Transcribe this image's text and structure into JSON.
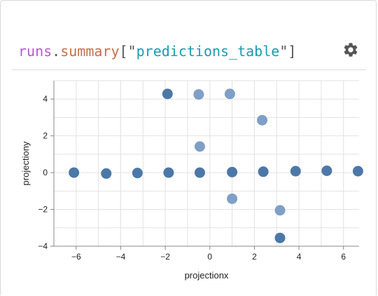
{
  "header": {
    "title_runs": "runs",
    "title_dot": ".",
    "title_summary": "summary",
    "title_open": "[\"",
    "title_key": "predictions_table",
    "title_close": "\"]",
    "settings_icon": "gear-icon"
  },
  "chart_data": {
    "type": "scatter",
    "xlabel": "projectionx",
    "ylabel": "projectiony",
    "xlim": [
      -7,
      6.7
    ],
    "ylim": [
      -4,
      5
    ],
    "x_ticks": [
      -6,
      -4,
      -2,
      0,
      2,
      4,
      6
    ],
    "y_ticks": [
      -4,
      -2,
      0,
      2,
      4
    ],
    "tick_labels_x": [
      "−6",
      "−4",
      "−2",
      "0",
      "2",
      "4",
      "6"
    ],
    "tick_labels_y": [
      "−4",
      "−2",
      "0",
      "2",
      "4"
    ],
    "grid": true,
    "points": [
      {
        "x": -6.1,
        "y": 0.0,
        "shade": "dark"
      },
      {
        "x": -4.65,
        "y": -0.05,
        "shade": "dark"
      },
      {
        "x": -3.25,
        "y": -0.02,
        "shade": "dark"
      },
      {
        "x": -1.85,
        "y": 0.0,
        "shade": "dark"
      },
      {
        "x": -0.45,
        "y": 0.0,
        "shade": "dark"
      },
      {
        "x": 1.0,
        "y": 0.03,
        "shade": "dark"
      },
      {
        "x": 2.4,
        "y": 0.05,
        "shade": "dark"
      },
      {
        "x": 3.85,
        "y": 0.08,
        "shade": "dark"
      },
      {
        "x": 5.25,
        "y": 0.1,
        "shade": "dark"
      },
      {
        "x": 6.65,
        "y": 0.08,
        "shade": "dark"
      },
      {
        "x": -1.9,
        "y": 4.28,
        "shade": "dark"
      },
      {
        "x": -0.5,
        "y": 4.25,
        "shade": "light"
      },
      {
        "x": 0.9,
        "y": 4.28,
        "shade": "light"
      },
      {
        "x": 2.35,
        "y": 2.85,
        "shade": "light"
      },
      {
        "x": -0.45,
        "y": 1.42,
        "shade": "light"
      },
      {
        "x": 1.0,
        "y": -1.42,
        "shade": "light"
      },
      {
        "x": 3.15,
        "y": -2.05,
        "shade": "light"
      },
      {
        "x": 3.15,
        "y": -3.55,
        "shade": "dark"
      }
    ],
    "colors": {
      "dark": "#4c78a8",
      "light": "#7f9fc6",
      "grid": "#e2e2e2",
      "axis": "#888888"
    }
  }
}
